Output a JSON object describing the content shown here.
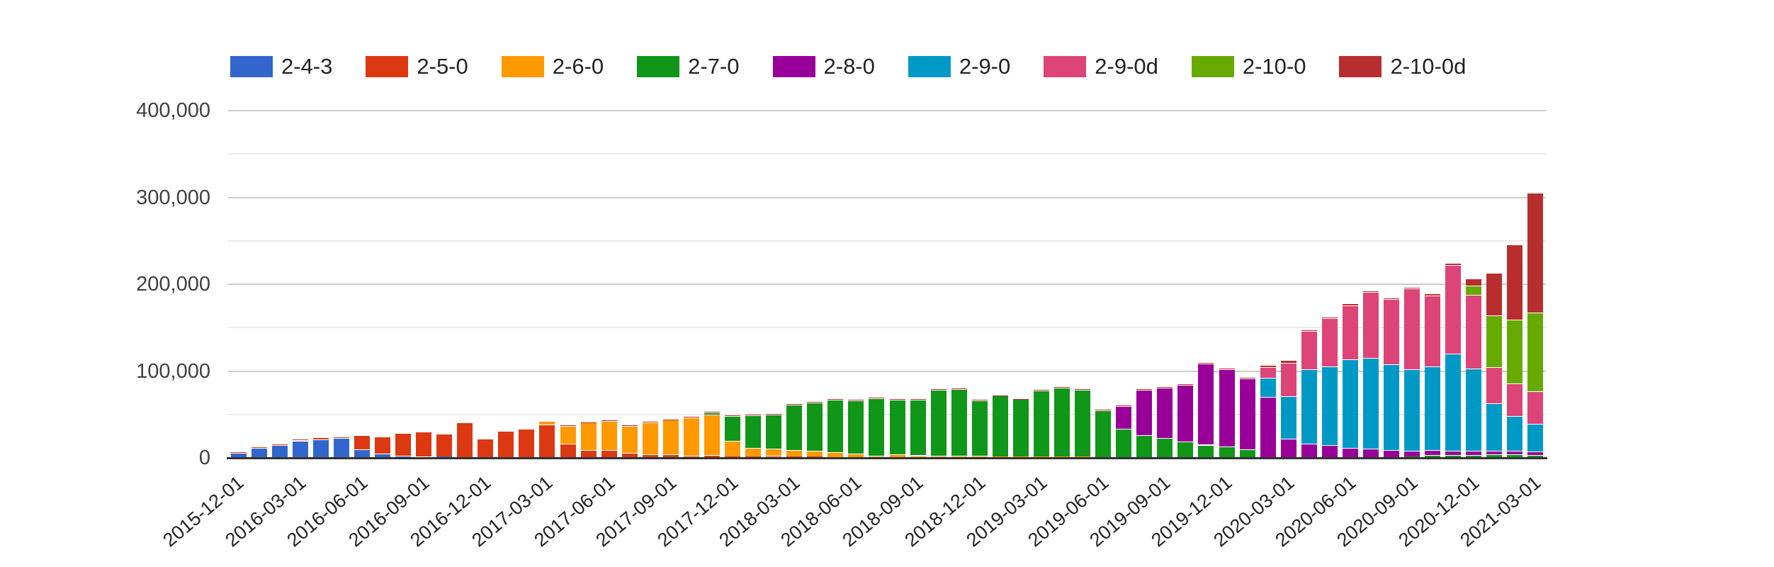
{
  "chart_data": {
    "type": "bar",
    "stacked": true,
    "title": "",
    "xlabel": "",
    "ylabel": "",
    "legend_position": "top",
    "grid": true,
    "ylim": [
      0,
      400000
    ],
    "y_minor_step": 50000,
    "y_ticks": [
      {
        "value": 0,
        "label": "0"
      },
      {
        "value": 100000,
        "label": "100,000"
      },
      {
        "value": 200000,
        "label": "200,000"
      },
      {
        "value": 300000,
        "label": "300,000"
      },
      {
        "value": 400000,
        "label": "400,000"
      }
    ],
    "x_tick_every": 3,
    "x": [
      "2015-12-01",
      "2016-01-01",
      "2016-02-01",
      "2016-03-01",
      "2016-04-01",
      "2016-05-01",
      "2016-06-01",
      "2016-07-01",
      "2016-08-01",
      "2016-09-01",
      "2016-10-01",
      "2016-11-01",
      "2016-12-01",
      "2017-01-01",
      "2017-02-01",
      "2017-03-01",
      "2017-04-01",
      "2017-05-01",
      "2017-06-01",
      "2017-07-01",
      "2017-08-01",
      "2017-09-01",
      "2017-10-01",
      "2017-11-01",
      "2017-12-01",
      "2018-01-01",
      "2018-02-01",
      "2018-03-01",
      "2018-04-01",
      "2018-05-01",
      "2018-06-01",
      "2018-07-01",
      "2018-08-01",
      "2018-09-01",
      "2018-10-01",
      "2018-11-01",
      "2018-12-01",
      "2019-01-01",
      "2019-02-01",
      "2019-03-01",
      "2019-04-01",
      "2019-05-01",
      "2019-06-01",
      "2019-07-01",
      "2019-08-01",
      "2019-09-01",
      "2019-10-01",
      "2019-11-01",
      "2019-12-01",
      "2020-01-01",
      "2020-02-01",
      "2020-03-01",
      "2020-04-01",
      "2020-05-01",
      "2020-06-01",
      "2020-07-01",
      "2020-08-01",
      "2020-09-01",
      "2020-10-01",
      "2020-11-01",
      "2020-12-01",
      "2021-01-01",
      "2021-02-01",
      "2021-03-01"
    ],
    "series": [
      {
        "name": "2-4-3",
        "color": "#3366CC",
        "values": [
          6000,
          11500,
          14500,
          20000,
          21500,
          22500,
          9500,
          4500,
          2700,
          2000,
          1500,
          1200,
          800,
          600,
          500,
          400,
          400,
          300,
          300,
          250,
          200,
          200,
          150,
          150,
          100,
          100,
          100,
          100,
          100,
          100,
          50,
          50,
          50,
          50,
          50,
          50,
          50,
          0,
          0,
          0,
          0,
          0,
          0,
          0,
          0,
          0,
          0,
          0,
          0,
          0,
          0,
          0,
          0,
          0,
          0,
          0,
          0,
          0,
          0,
          0,
          0,
          0,
          0,
          0
        ]
      },
      {
        "name": "2-5-0",
        "color": "#DC3912",
        "values": [
          800,
          1000,
          1200,
          1500,
          1500,
          1500,
          15500,
          19000,
          25000,
          27000,
          25500,
          38500,
          20500,
          29500,
          32500,
          38000,
          16000,
          9000,
          9000,
          5400,
          3500,
          3500,
          2400,
          3000,
          1600,
          1400,
          2200,
          1600,
          1600,
          500,
          500,
          500,
          400,
          400,
          300,
          300,
          300,
          250,
          250,
          200,
          200,
          200,
          150,
          150,
          150,
          100,
          100,
          100,
          100,
          100,
          100,
          100,
          0,
          0,
          0,
          0,
          0,
          0,
          0,
          0,
          0,
          0,
          0,
          0
        ]
      },
      {
        "name": "2-6-0",
        "color": "#FF9900",
        "values": [
          0,
          0,
          0,
          0,
          0,
          200,
          200,
          200,
          200,
          200,
          200,
          200,
          200,
          300,
          300,
          3600,
          20500,
          31300,
          33500,
          31000,
          37000,
          40000,
          44000,
          46800,
          18200,
          10000,
          8200,
          7300,
          6300,
          6300,
          4600,
          2200,
          3300,
          2400,
          2400,
          2200,
          1900,
          1600,
          1400,
          1400,
          1200,
          1100,
          900,
          800,
          700,
          600,
          500,
          400,
          300,
          300,
          250,
          200,
          200,
          150,
          150,
          150,
          100,
          100,
          100,
          100,
          100,
          100,
          100,
          100
        ]
      },
      {
        "name": "2-7-0",
        "color": "#109618",
        "values": [
          0,
          0,
          0,
          0,
          0,
          0,
          0,
          0,
          0,
          0,
          0,
          0,
          0,
          0,
          0,
          0,
          0,
          0,
          0,
          0,
          0,
          0,
          0,
          2400,
          28300,
          37500,
          39700,
          52500,
          55800,
          59800,
          61000,
          66000,
          63500,
          63800,
          75500,
          76300,
          63800,
          69600,
          65800,
          76000,
          79300,
          76900,
          54000,
          32800,
          25400,
          22400,
          18500,
          14600,
          12500,
          9000,
          500,
          800,
          800,
          800,
          800,
          800,
          1000,
          1500,
          3500,
          3500,
          3500,
          4000,
          4000,
          3300
        ]
      },
      {
        "name": "2-8-0",
        "color": "#990099",
        "values": [
          0,
          0,
          0,
          0,
          0,
          0,
          0,
          0,
          0,
          0,
          0,
          0,
          0,
          0,
          0,
          0,
          0,
          0,
          0,
          0,
          0,
          0,
          0,
          0,
          0,
          0,
          0,
          0,
          0,
          0,
          0,
          0,
          0,
          0,
          0,
          0,
          0,
          0,
          0,
          0,
          0,
          0,
          0,
          25800,
          52000,
          58000,
          65000,
          93500,
          89000,
          82000,
          69000,
          21000,
          15000,
          13600,
          10300,
          9800,
          7600,
          6300,
          5400,
          4500,
          4500,
          4000,
          4000,
          4000
        ]
      },
      {
        "name": "2-9-0",
        "color": "#0099C6",
        "values": [
          0,
          0,
          0,
          0,
          0,
          0,
          0,
          0,
          0,
          0,
          0,
          0,
          0,
          0,
          0,
          0,
          0,
          0,
          0,
          0,
          0,
          0,
          0,
          0,
          0,
          0,
          0,
          0,
          0,
          0,
          0,
          0,
          0,
          0,
          0,
          0,
          0,
          0,
          0,
          0,
          0,
          0,
          0,
          0,
          0,
          0,
          0,
          0,
          0,
          0,
          22500,
          49000,
          86000,
          90600,
          102000,
          104000,
          99300,
          93800,
          96600,
          111500,
          95000,
          55000,
          40000,
          31800
        ]
      },
      {
        "name": "2-9-0d",
        "color": "#DD4477",
        "values": [
          0,
          0,
          0,
          0,
          0,
          0,
          0,
          0,
          0,
          0,
          0,
          0,
          0,
          0,
          0,
          0,
          0,
          0,
          0,
          0,
          0,
          0,
          0,
          0,
          0,
          0,
          0,
          0,
          0,
          0,
          0,
          0,
          0,
          0,
          0,
          0,
          0,
          0,
          0,
          0,
          0,
          0,
          0,
          0,
          0,
          0,
          0,
          0,
          0,
          0,
          12200,
          38500,
          44000,
          55800,
          62600,
          76200,
          74800,
          93000,
          81600,
          102800,
          85000,
          41600,
          37300,
          37500
        ]
      },
      {
        "name": "2-10-0",
        "color": "#66AA00",
        "values": [
          0,
          0,
          0,
          0,
          0,
          0,
          0,
          0,
          0,
          0,
          0,
          0,
          0,
          0,
          0,
          0,
          0,
          0,
          0,
          0,
          0,
          0,
          0,
          0,
          0,
          0,
          0,
          0,
          0,
          0,
          0,
          0,
          0,
          0,
          0,
          0,
          0,
          0,
          0,
          0,
          0,
          0,
          0,
          0,
          0,
          0,
          0,
          0,
          0,
          0,
          0,
          0,
          0,
          0,
          0,
          0,
          0,
          0,
          0,
          0,
          10000,
          59000,
          73400,
          90600
        ]
      },
      {
        "name": "2-10-0d",
        "color": "#B82E2E",
        "values": [
          0,
          0,
          0,
          0,
          0,
          0,
          0,
          0,
          0,
          0,
          0,
          0,
          0,
          0,
          0,
          0,
          600,
          600,
          600,
          600,
          600,
          600,
          600,
          600,
          700,
          700,
          700,
          800,
          800,
          800,
          800,
          800,
          800,
          800,
          900,
          900,
          700,
          700,
          700,
          800,
          800,
          800,
          600,
          700,
          700,
          800,
          900,
          1000,
          900,
          800,
          1500,
          2000,
          900,
          900,
          900,
          1000,
          1000,
          1000,
          1000,
          1500,
          8000,
          48400,
          86500,
          137000
        ]
      }
    ]
  }
}
